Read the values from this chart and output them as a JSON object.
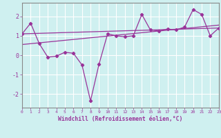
{
  "xlabel": "Windchill (Refroidissement éolien,°C)",
  "background_color": "#cff0f0",
  "grid_color": "#ffffff",
  "line_color": "#993399",
  "x_data": [
    0,
    1,
    2,
    3,
    4,
    5,
    6,
    7,
    8,
    9,
    10,
    11,
    12,
    13,
    14,
    15,
    16,
    17,
    18,
    19,
    20,
    21,
    22,
    23
  ],
  "series1": [
    1.1,
    1.65,
    0.6,
    -0.1,
    -0.05,
    0.15,
    0.1,
    -0.5,
    -2.35,
    -0.45,
    1.1,
    1.0,
    0.95,
    1.0,
    2.1,
    1.3,
    1.25,
    1.35,
    1.3,
    1.45,
    2.35,
    2.1,
    1.0,
    1.4
  ],
  "trend1_x": [
    0,
    23
  ],
  "trend1_y": [
    1.1,
    1.4
  ],
  "trend2_x": [
    0,
    23
  ],
  "trend2_y": [
    0.55,
    1.55
  ],
  "ylim": [
    -2.7,
    2.7
  ],
  "xlim": [
    0,
    23
  ],
  "yticks": [
    -2,
    -1,
    0,
    1,
    2
  ],
  "xticks": [
    0,
    1,
    2,
    3,
    4,
    5,
    6,
    7,
    8,
    9,
    10,
    11,
    12,
    13,
    14,
    15,
    16,
    17,
    18,
    19,
    20,
    21,
    22,
    23
  ]
}
